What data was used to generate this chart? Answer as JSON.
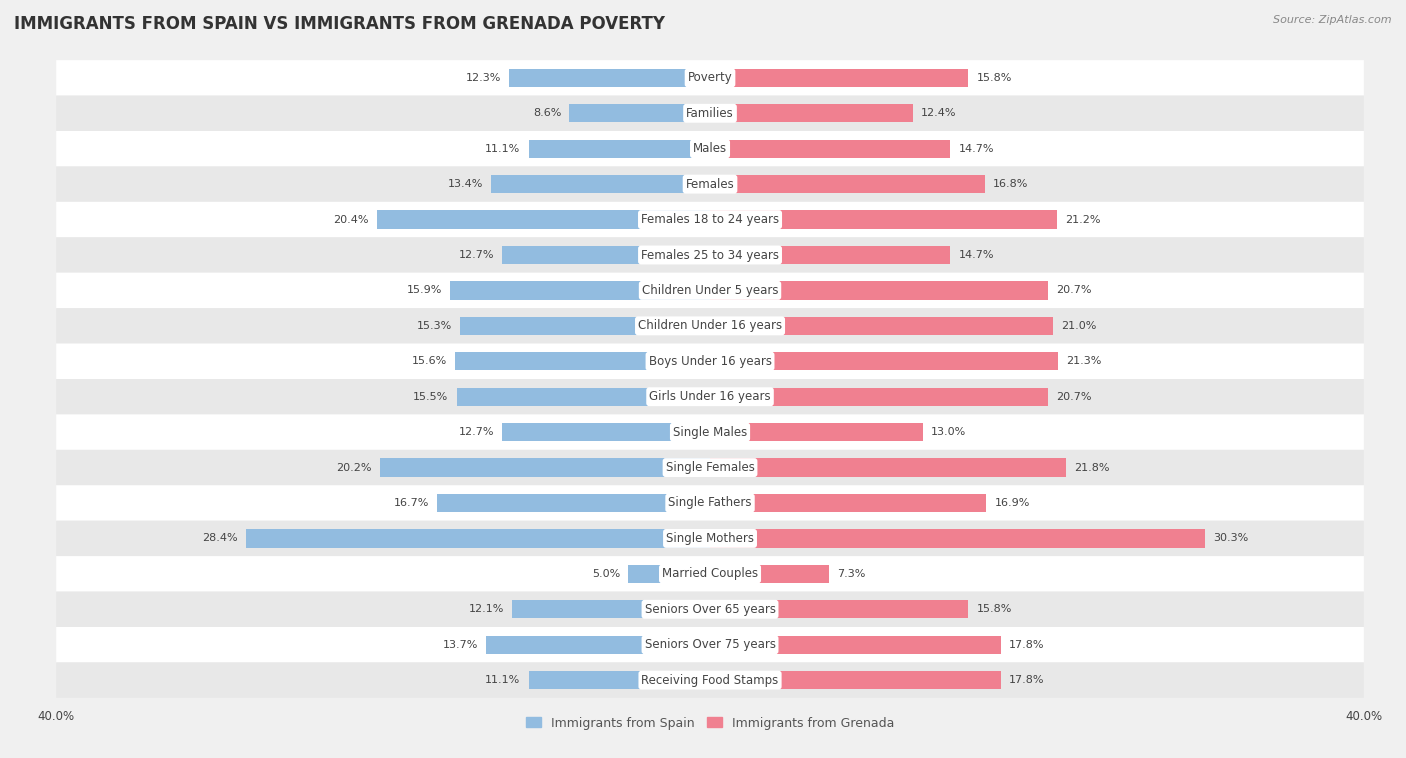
{
  "title": "IMMIGRANTS FROM SPAIN VS IMMIGRANTS FROM GRENADA POVERTY",
  "source": "Source: ZipAtlas.com",
  "categories": [
    "Poverty",
    "Families",
    "Males",
    "Females",
    "Females 18 to 24 years",
    "Females 25 to 34 years",
    "Children Under 5 years",
    "Children Under 16 years",
    "Boys Under 16 years",
    "Girls Under 16 years",
    "Single Males",
    "Single Females",
    "Single Fathers",
    "Single Mothers",
    "Married Couples",
    "Seniors Over 65 years",
    "Seniors Over 75 years",
    "Receiving Food Stamps"
  ],
  "spain_values": [
    12.3,
    8.6,
    11.1,
    13.4,
    20.4,
    12.7,
    15.9,
    15.3,
    15.6,
    15.5,
    12.7,
    20.2,
    16.7,
    28.4,
    5.0,
    12.1,
    13.7,
    11.1
  ],
  "grenada_values": [
    15.8,
    12.4,
    14.7,
    16.8,
    21.2,
    14.7,
    20.7,
    21.0,
    21.3,
    20.7,
    13.0,
    21.8,
    16.9,
    30.3,
    7.3,
    15.8,
    17.8,
    17.8
  ],
  "spain_color": "#92bce0",
  "grenada_color": "#f08090",
  "bar_height": 0.52,
  "background_color": "#f0f0f0",
  "row_colors_even": "#ffffff",
  "row_colors_odd": "#e8e8e8",
  "title_fontsize": 12,
  "label_fontsize": 8.5,
  "value_fontsize": 8,
  "legend_fontsize": 9,
  "source_fontsize": 8,
  "xlim": 40.0
}
